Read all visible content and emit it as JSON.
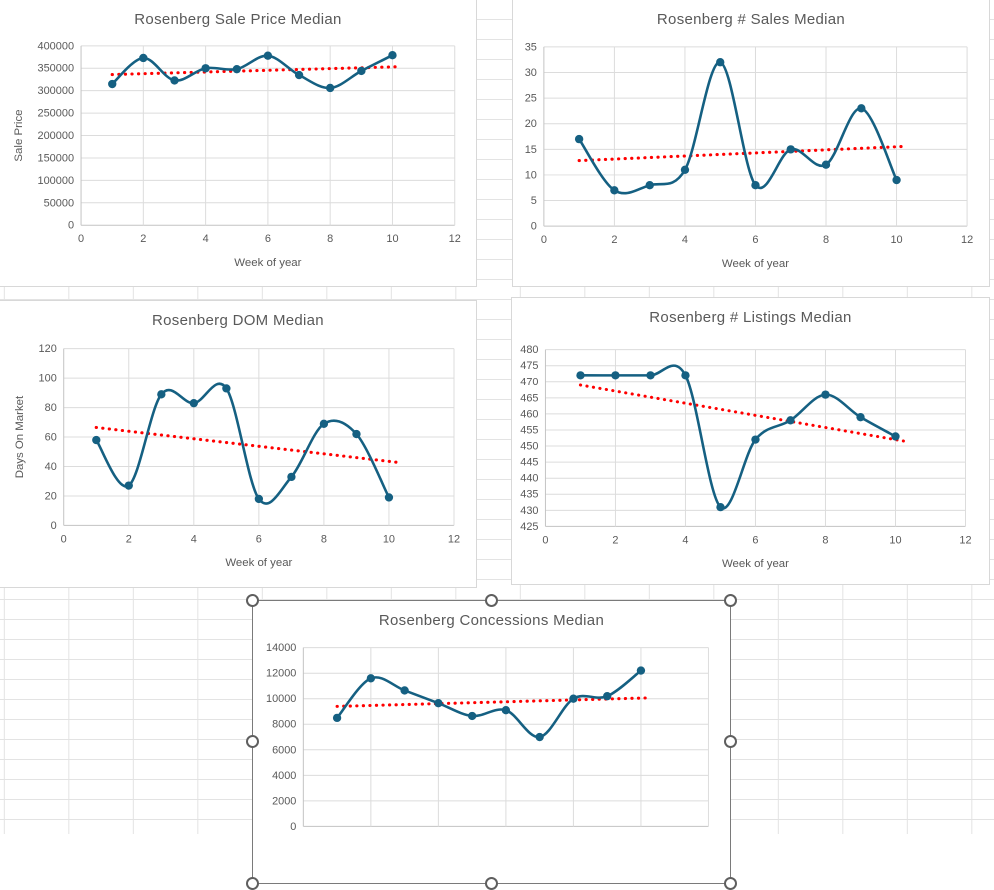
{
  "app": {
    "description": "Spreadsheet worksheet with five embedded line charts of Rosenberg weekly real-estate medians; the Concessions chart is selected"
  },
  "colors": {
    "series_line": "#156082",
    "marker": "#156082",
    "trendline": "#ff0000",
    "title_text": "#595959",
    "tick_text": "#595959",
    "chart_grid": "#dcdcdc",
    "chart_axis": "#c3c3c3",
    "chart_border": "#d8d8d8",
    "sheet_gridline": "#e3e3e3",
    "selection": "#5f5f5f"
  },
  "chart_data": [
    {
      "type": "line",
      "title": "Rosenberg Sale Price Median",
      "xlabel": "Week of year",
      "ylabel": "Sale Price",
      "x": [
        1,
        2,
        3,
        4,
        5,
        6,
        7,
        8,
        9,
        10
      ],
      "values": [
        315000,
        373000,
        323000,
        350000,
        348000,
        378000,
        335000,
        306000,
        344000,
        379000
      ],
      "trendline": {
        "style": "dotted-red",
        "x": [
          1,
          10
        ],
        "y": [
          336000,
          353000
        ]
      },
      "xlim": [
        0,
        12
      ],
      "ylim": [
        0,
        400000
      ],
      "xticks": [
        0,
        2,
        4,
        6,
        8,
        10,
        12
      ],
      "yticks": [
        0,
        50000,
        100000,
        150000,
        200000,
        250000,
        300000,
        350000,
        400000
      ],
      "xticks_visible": true,
      "grid": true,
      "smooth": true,
      "legend": "none",
      "selected": false
    },
    {
      "type": "line",
      "title": "Rosenberg # Sales Median",
      "xlabel": "Week of year",
      "ylabel": "",
      "x": [
        1,
        2,
        3,
        4,
        5,
        6,
        7,
        8,
        9,
        10
      ],
      "values": [
        17,
        7,
        8,
        11,
        32,
        8,
        15,
        12,
        23,
        9
      ],
      "trendline": {
        "style": "dotted-red",
        "x": [
          1,
          10
        ],
        "y": [
          12.8,
          15.5
        ]
      },
      "xlim": [
        0,
        12
      ],
      "ylim": [
        0,
        35
      ],
      "xticks": [
        0,
        2,
        4,
        6,
        8,
        10,
        12
      ],
      "yticks": [
        0,
        5,
        10,
        15,
        20,
        25,
        30,
        35
      ],
      "xticks_visible": true,
      "grid": true,
      "smooth": true,
      "legend": "none",
      "selected": false
    },
    {
      "type": "line",
      "title": "Rosenberg DOM Median",
      "xlabel": "Week of year",
      "ylabel": "Days On Market",
      "x": [
        1,
        2,
        3,
        4,
        5,
        6,
        7,
        8,
        9,
        10
      ],
      "values": [
        58,
        27,
        89,
        83,
        93,
        18,
        33,
        69,
        62,
        19
      ],
      "trendline": {
        "style": "dotted-red",
        "x": [
          1,
          10
        ],
        "y": [
          66.5,
          43.5
        ]
      },
      "xlim": [
        0,
        12
      ],
      "ylim": [
        0,
        120
      ],
      "xticks": [
        0,
        2,
        4,
        6,
        8,
        10,
        12
      ],
      "yticks": [
        0,
        20,
        40,
        60,
        80,
        100,
        120
      ],
      "xticks_visible": true,
      "grid": true,
      "smooth": true,
      "legend": "none",
      "selected": false
    },
    {
      "type": "line",
      "title": "Rosenberg # Listings Median",
      "xlabel": "Week of year",
      "ylabel": "",
      "x": [
        1,
        2,
        3,
        4,
        5,
        6,
        7,
        8,
        9,
        10
      ],
      "values": [
        472,
        472,
        472,
        472,
        431,
        452,
        458,
        466,
        459,
        453
      ],
      "trendline": {
        "style": "dotted-red",
        "x": [
          1,
          10
        ],
        "y": [
          469,
          452
        ]
      },
      "xlim": [
        0,
        12
      ],
      "ylim": [
        425,
        480
      ],
      "xticks": [
        0,
        2,
        4,
        6,
        8,
        10,
        12
      ],
      "yticks": [
        425,
        430,
        435,
        440,
        445,
        450,
        455,
        460,
        465,
        470,
        475,
        480
      ],
      "xticks_visible": true,
      "grid": true,
      "smooth": true,
      "legend": "none",
      "selected": false
    },
    {
      "type": "line",
      "title": "Rosenberg Concessions Median",
      "xlabel": "",
      "ylabel": "",
      "x": [
        1,
        2,
        3,
        4,
        5,
        6,
        7,
        8,
        9,
        10
      ],
      "values": [
        8500,
        11600,
        10650,
        9650,
        8650,
        9100,
        7000,
        10000,
        10200,
        12200
      ],
      "trendline": {
        "style": "dotted-red",
        "x": [
          1,
          10
        ],
        "y": [
          9400,
          10050
        ]
      },
      "xlim": [
        0,
        12
      ],
      "ylim": [
        0,
        14000
      ],
      "xticks": [
        0,
        2,
        4,
        6,
        8,
        10,
        12
      ],
      "yticks": [
        0,
        2000,
        4000,
        6000,
        8000,
        10000,
        12000,
        14000
      ],
      "xticks_visible": false,
      "grid": true,
      "smooth": true,
      "legend": "none",
      "selected": true
    }
  ]
}
